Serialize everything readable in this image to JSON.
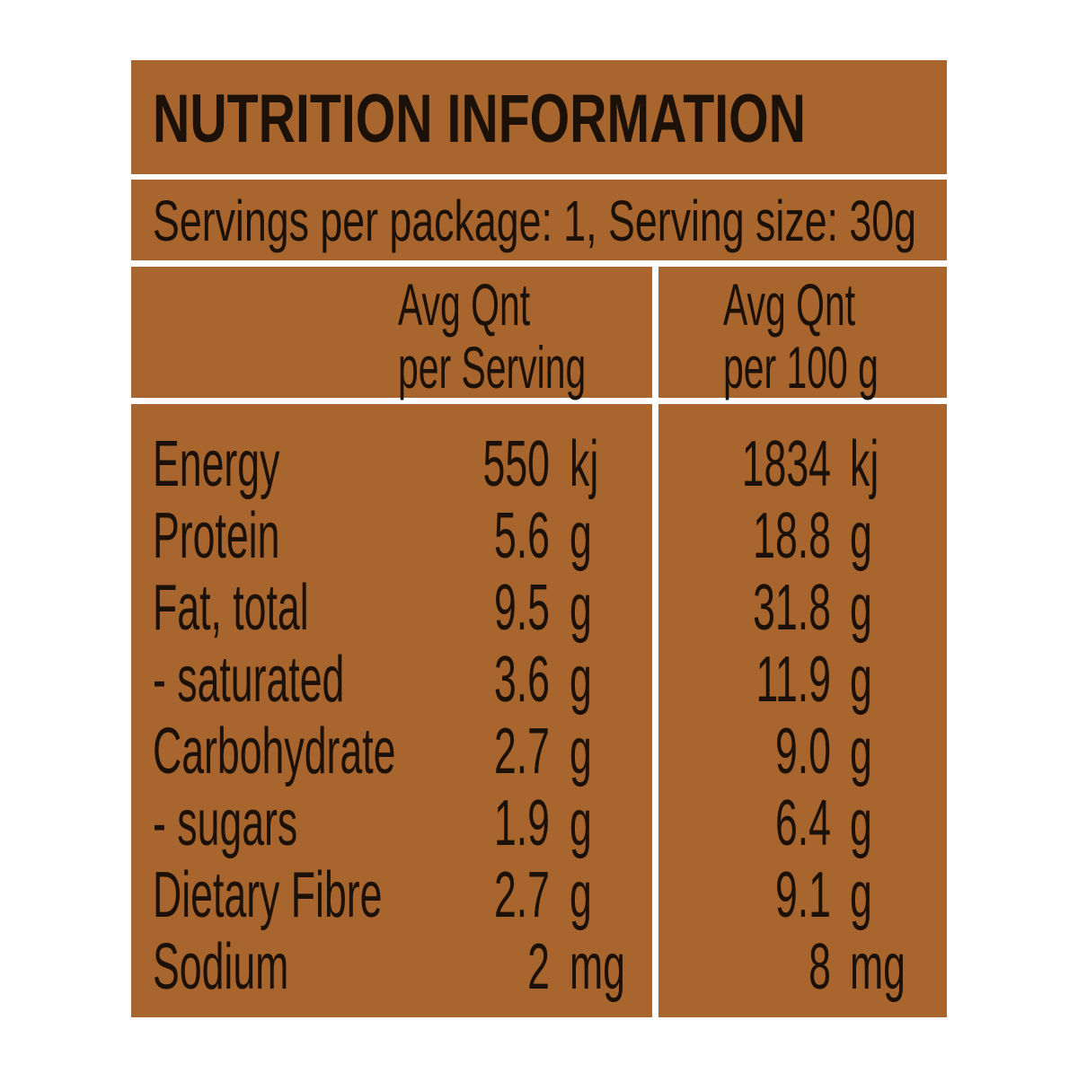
{
  "title": "NUTRITION INFORMATION",
  "serving_info": "Servings per package: 1, Serving size: 30g",
  "columns": [
    [
      "Avg Qnt",
      "per Serving"
    ],
    [
      "Avg Qnt",
      "per 100 g"
    ]
  ],
  "rows": [
    {
      "nutrient": "Energy",
      "per_serving": {
        "amount": "550",
        "unit": "kj"
      },
      "per_100g": {
        "amount": "1834",
        "unit": "kj"
      }
    },
    {
      "nutrient": "Protein",
      "per_serving": {
        "amount": "5.6",
        "unit": "g"
      },
      "per_100g": {
        "amount": "18.8",
        "unit": "g"
      }
    },
    {
      "nutrient": "Fat, total",
      "per_serving": {
        "amount": "9.5",
        "unit": "g"
      },
      "per_100g": {
        "amount": "31.8",
        "unit": "g"
      }
    },
    {
      "nutrient": "- saturated",
      "per_serving": {
        "amount": "3.6",
        "unit": "g"
      },
      "per_100g": {
        "amount": "11.9",
        "unit": "g"
      }
    },
    {
      "nutrient": "Carbohydrate",
      "per_serving": {
        "amount": "2.7",
        "unit": "g"
      },
      "per_100g": {
        "amount": "9.0",
        "unit": "g"
      }
    },
    {
      "nutrient": "- sugars",
      "per_serving": {
        "amount": "1.9",
        "unit": "g"
      },
      "per_100g": {
        "amount": "6.4",
        "unit": "g"
      }
    },
    {
      "nutrient": "Dietary Fibre",
      "per_serving": {
        "amount": "2.7",
        "unit": "g"
      },
      "per_100g": {
        "amount": "9.1",
        "unit": "g"
      }
    },
    {
      "nutrient": "Sodium",
      "per_serving": {
        "amount": "2",
        "unit": "mg"
      },
      "per_100g": {
        "amount": "8",
        "unit": "mg"
      }
    }
  ]
}
